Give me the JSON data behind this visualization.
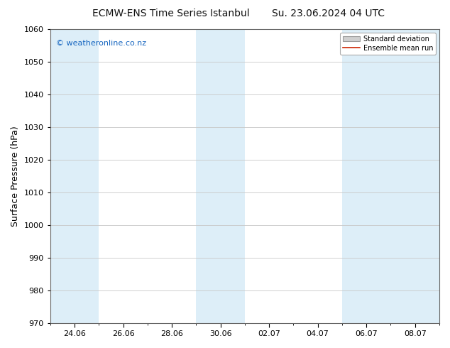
{
  "title_left": "ECMW-ENS Time Series Istanbul",
  "title_right": "Su. 23.06.2024 04 UTC",
  "ylabel": "Surface Pressure (hPa)",
  "ylim": [
    970,
    1060
  ],
  "yticks": [
    970,
    980,
    990,
    1000,
    1010,
    1020,
    1030,
    1040,
    1050,
    1060
  ],
  "watermark": "© weatheronline.co.nz",
  "watermark_color": "#1565c0",
  "background_color": "#ffffff",
  "plot_bg_color": "#ffffff",
  "shaded_band_color": "#ddeef8",
  "x_tick_labels": [
    "24.06",
    "26.06",
    "28.06",
    "30.06",
    "02.07",
    "04.07",
    "06.07",
    "08.07"
  ],
  "legend_entries": [
    "Standard deviation",
    "Ensemble mean run"
  ],
  "legend_patch_color": "#d0d0d0",
  "legend_line_color": "#cc2200",
  "grid_color": "#c8c8c8",
  "title_fontsize": 10,
  "ylabel_fontsize": 9,
  "tick_fontsize": 8,
  "watermark_fontsize": 8
}
